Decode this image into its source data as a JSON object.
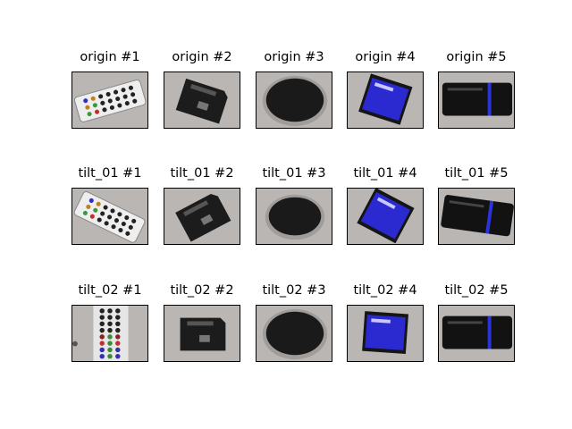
{
  "rows": [
    {
      "cells": [
        {
          "title": "origin #1",
          "object": "remote"
        },
        {
          "title": "origin #2",
          "object": "sdcard"
        },
        {
          "title": "origin #3",
          "object": "disc"
        },
        {
          "title": "origin #4",
          "object": "bluecard"
        },
        {
          "title": "origin #5",
          "object": "cardreader"
        }
      ]
    },
    {
      "cells": [
        {
          "title": "tilt_01 #1",
          "object": "remote"
        },
        {
          "title": "tilt_01 #2",
          "object": "sdcard"
        },
        {
          "title": "tilt_01 #3",
          "object": "disc"
        },
        {
          "title": "tilt_01 #4",
          "object": "bluecard"
        },
        {
          "title": "tilt_01 #5",
          "object": "cardreader"
        }
      ]
    },
    {
      "cells": [
        {
          "title": "tilt_02 #1",
          "object": "remote"
        },
        {
          "title": "tilt_02 #2",
          "object": "sdcard"
        },
        {
          "title": "tilt_02 #3",
          "object": "disc"
        },
        {
          "title": "tilt_02 #4",
          "object": "bluecard"
        },
        {
          "title": "tilt_02 #5",
          "object": "cardreader"
        }
      ]
    }
  ]
}
